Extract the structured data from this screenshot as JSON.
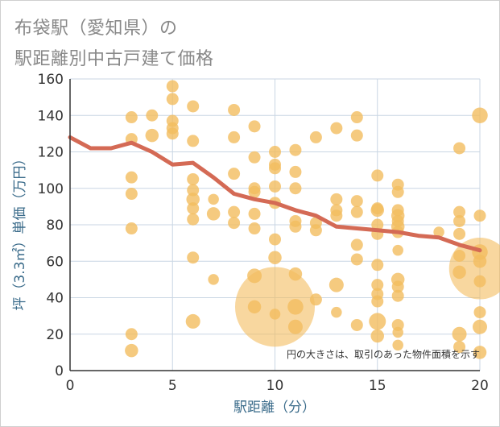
{
  "title": {
    "line1": "布袋駅（愛知県）の",
    "line2": "駅距離別中古戸建て価格"
  },
  "chart_data": {
    "type": "scatter",
    "xlabel": "駅距離（分）",
    "ylabel": "坪（3.3㎡）単価（万円）",
    "xlim": [
      0,
      20
    ],
    "ylim": [
      0,
      160
    ],
    "x_ticks": [
      "0",
      "5",
      "10",
      "15",
      "20"
    ],
    "y_ticks": [
      "0",
      "20",
      "40",
      "60",
      "80",
      "100",
      "120",
      "140",
      "160"
    ],
    "grid": true,
    "note": "円の大きさは、取引のあった物件面積を示す",
    "colors": {
      "bubble": "#f3bd5f",
      "trend": "#d46a55",
      "grid": "#c9d6e3"
    },
    "trend_line": {
      "x": [
        0,
        1,
        2,
        3,
        4,
        5,
        6,
        7,
        8,
        9,
        10,
        11,
        12,
        13,
        14,
        15,
        16,
        17,
        18,
        19,
        20
      ],
      "y": [
        128,
        122,
        122,
        125,
        120,
        113,
        114,
        106,
        97,
        94,
        92,
        88,
        85,
        79,
        78,
        77,
        76,
        74,
        73,
        69,
        66
      ]
    },
    "points": [
      {
        "x": 3,
        "y": 139,
        "s": 1
      },
      {
        "x": 3,
        "y": 127,
        "s": 1
      },
      {
        "x": 3,
        "y": 106,
        "s": 1
      },
      {
        "x": 3,
        "y": 97,
        "s": 1
      },
      {
        "x": 3,
        "y": 78,
        "s": 1
      },
      {
        "x": 3,
        "y": 20,
        "s": 1
      },
      {
        "x": 3,
        "y": 11,
        "s": 1.1
      },
      {
        "x": 4,
        "y": 140,
        "s": 1
      },
      {
        "x": 4,
        "y": 129,
        "s": 1.1
      },
      {
        "x": 5,
        "y": 156,
        "s": 1
      },
      {
        "x": 5,
        "y": 149,
        "s": 1
      },
      {
        "x": 5,
        "y": 137,
        "s": 1
      },
      {
        "x": 5,
        "y": 133,
        "s": 1
      },
      {
        "x": 5,
        "y": 130,
        "s": 1
      },
      {
        "x": 6,
        "y": 145,
        "s": 1
      },
      {
        "x": 6,
        "y": 126,
        "s": 1
      },
      {
        "x": 6,
        "y": 105,
        "s": 1
      },
      {
        "x": 6,
        "y": 99,
        "s": 1
      },
      {
        "x": 6,
        "y": 94,
        "s": 1.1
      },
      {
        "x": 6,
        "y": 89,
        "s": 1
      },
      {
        "x": 6,
        "y": 83,
        "s": 1
      },
      {
        "x": 6,
        "y": 62,
        "s": 1
      },
      {
        "x": 6,
        "y": 27,
        "s": 1.2
      },
      {
        "x": 7,
        "y": 94,
        "s": 0.9
      },
      {
        "x": 7,
        "y": 86,
        "s": 1.1
      },
      {
        "x": 7,
        "y": 50,
        "s": 0.9
      },
      {
        "x": 8,
        "y": 143,
        "s": 1
      },
      {
        "x": 8,
        "y": 128,
        "s": 1
      },
      {
        "x": 8,
        "y": 108,
        "s": 1
      },
      {
        "x": 8,
        "y": 87,
        "s": 1
      },
      {
        "x": 8,
        "y": 81,
        "s": 1
      },
      {
        "x": 9,
        "y": 134,
        "s": 1
      },
      {
        "x": 9,
        "y": 117,
        "s": 1
      },
      {
        "x": 9,
        "y": 100,
        "s": 1
      },
      {
        "x": 9,
        "y": 98,
        "s": 1
      },
      {
        "x": 9,
        "y": 86,
        "s": 1
      },
      {
        "x": 9,
        "y": 78,
        "s": 1
      },
      {
        "x": 9,
        "y": 52,
        "s": 1.2
      },
      {
        "x": 9,
        "y": 35,
        "s": 1.1
      },
      {
        "x": 10,
        "y": 120,
        "s": 1
      },
      {
        "x": 10,
        "y": 113,
        "s": 1
      },
      {
        "x": 10,
        "y": 111,
        "s": 1
      },
      {
        "x": 10,
        "y": 101,
        "s": 1
      },
      {
        "x": 10,
        "y": 92,
        "s": 1
      },
      {
        "x": 10,
        "y": 72,
        "s": 1
      },
      {
        "x": 10,
        "y": 62,
        "s": 1.1
      },
      {
        "x": 10,
        "y": 35,
        "s": 6.6
      },
      {
        "x": 10,
        "y": 31,
        "s": 0.9
      },
      {
        "x": 11,
        "y": 121,
        "s": 1
      },
      {
        "x": 11,
        "y": 109,
        "s": 1
      },
      {
        "x": 11,
        "y": 100,
        "s": 1
      },
      {
        "x": 11,
        "y": 82,
        "s": 1
      },
      {
        "x": 11,
        "y": 79,
        "s": 1
      },
      {
        "x": 11,
        "y": 53,
        "s": 1.1
      },
      {
        "x": 11,
        "y": 35,
        "s": 1.3
      },
      {
        "x": 11,
        "y": 24,
        "s": 1.2
      },
      {
        "x": 12,
        "y": 128,
        "s": 1
      },
      {
        "x": 12,
        "y": 81,
        "s": 1
      },
      {
        "x": 12,
        "y": 77,
        "s": 1
      },
      {
        "x": 12,
        "y": 39,
        "s": 1
      },
      {
        "x": 13,
        "y": 133,
        "s": 1
      },
      {
        "x": 13,
        "y": 94,
        "s": 1
      },
      {
        "x": 13,
        "y": 88,
        "s": 1
      },
      {
        "x": 13,
        "y": 85,
        "s": 1
      },
      {
        "x": 13,
        "y": 47,
        "s": 1.2
      },
      {
        "x": 13,
        "y": 32,
        "s": 0.9
      },
      {
        "x": 14,
        "y": 139,
        "s": 1
      },
      {
        "x": 14,
        "y": 129,
        "s": 1
      },
      {
        "x": 14,
        "y": 93,
        "s": 1
      },
      {
        "x": 14,
        "y": 87,
        "s": 1
      },
      {
        "x": 14,
        "y": 69,
        "s": 1
      },
      {
        "x": 14,
        "y": 61,
        "s": 1
      },
      {
        "x": 14,
        "y": 25,
        "s": 1
      },
      {
        "x": 15,
        "y": 107,
        "s": 1
      },
      {
        "x": 15,
        "y": 89,
        "s": 1
      },
      {
        "x": 15,
        "y": 88,
        "s": 1.1
      },
      {
        "x": 15,
        "y": 80,
        "s": 1
      },
      {
        "x": 15,
        "y": 75,
        "s": 1
      },
      {
        "x": 15,
        "y": 58,
        "s": 1
      },
      {
        "x": 15,
        "y": 47,
        "s": 1
      },
      {
        "x": 15,
        "y": 42,
        "s": 1
      },
      {
        "x": 15,
        "y": 38,
        "s": 1
      },
      {
        "x": 15,
        "y": 27,
        "s": 1.4
      },
      {
        "x": 15,
        "y": 19,
        "s": 1.1
      },
      {
        "x": 16,
        "y": 102,
        "s": 1
      },
      {
        "x": 16,
        "y": 98,
        "s": 1
      },
      {
        "x": 16,
        "y": 88,
        "s": 1
      },
      {
        "x": 16,
        "y": 85,
        "s": 1.1
      },
      {
        "x": 16,
        "y": 82,
        "s": 1
      },
      {
        "x": 16,
        "y": 79,
        "s": 1.1
      },
      {
        "x": 16,
        "y": 76,
        "s": 1
      },
      {
        "x": 16,
        "y": 66,
        "s": 0.9
      },
      {
        "x": 16,
        "y": 50,
        "s": 1.1
      },
      {
        "x": 16,
        "y": 46,
        "s": 1
      },
      {
        "x": 16,
        "y": 41,
        "s": 1
      },
      {
        "x": 16,
        "y": 25,
        "s": 1
      },
      {
        "x": 16,
        "y": 21,
        "s": 0.9
      },
      {
        "x": 16,
        "y": 14,
        "s": 0.9
      },
      {
        "x": 18,
        "y": 76,
        "s": 0.9
      },
      {
        "x": 19,
        "y": 122,
        "s": 1
      },
      {
        "x": 19,
        "y": 87,
        "s": 1
      },
      {
        "x": 19,
        "y": 82,
        "s": 1
      },
      {
        "x": 19,
        "y": 75,
        "s": 1
      },
      {
        "x": 19,
        "y": 63,
        "s": 1
      },
      {
        "x": 19,
        "y": 54,
        "s": 1.1
      },
      {
        "x": 19,
        "y": 20,
        "s": 1.2
      },
      {
        "x": 19,
        "y": 13,
        "s": 1
      },
      {
        "x": 20,
        "y": 140,
        "s": 1.3
      },
      {
        "x": 20,
        "y": 85,
        "s": 1
      },
      {
        "x": 20,
        "y": 65,
        "s": 1.3
      },
      {
        "x": 20,
        "y": 60,
        "s": 1.1
      },
      {
        "x": 20,
        "y": 56,
        "s": 5.1
      },
      {
        "x": 20,
        "y": 49,
        "s": 1
      },
      {
        "x": 20,
        "y": 32,
        "s": 1
      },
      {
        "x": 20,
        "y": 24,
        "s": 1.2
      },
      {
        "x": 20,
        "y": 10,
        "s": 1.1
      }
    ]
  }
}
